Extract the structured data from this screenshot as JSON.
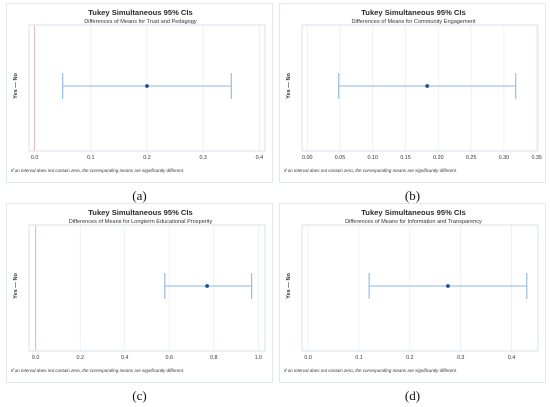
{
  "chart_data": [
    {
      "type": "interval",
      "caption": "(a)",
      "title": "Tukey Simultaneous 95% CIs",
      "subtitle": "Differences of Means for Trust and Pedagogy",
      "ylabel": "Yes — No",
      "xlim": [
        -0.01,
        0.41
      ],
      "ticks": [
        0.0,
        0.1,
        0.2,
        0.3,
        0.4
      ],
      "tick_labels": [
        "0.0",
        "0.1",
        "0.2",
        "0.3",
        "0.4"
      ],
      "zero_line": true,
      "grid": true,
      "series": [
        {
          "category": "Yes — No",
          "lower": 0.05,
          "estimate": 0.2,
          "upper": 0.35
        }
      ],
      "footnote": "If an interval does not contain zero, the corresponding means are significantly different."
    },
    {
      "type": "interval",
      "caption": "(b)",
      "title": "Tukey Simultaneous 95% CIs",
      "subtitle": "Differences of Means for Community Engagement",
      "ylabel": "Yes — No",
      "xlim": [
        -0.008,
        0.352
      ],
      "ticks": [
        0.0,
        0.05,
        0.1,
        0.15,
        0.2,
        0.25,
        0.3,
        0.35
      ],
      "tick_labels": [
        "0.00",
        "0.05",
        "0.10",
        "0.15",
        "0.20",
        "0.25",
        "0.30",
        "0.35"
      ],
      "zero_line": false,
      "grid": true,
      "series": [
        {
          "category": "Yes — No",
          "lower": 0.048,
          "estimate": 0.183,
          "upper": 0.318
        }
      ],
      "footnote": "If an interval does not contain zero, the corresponding means are significantly different."
    },
    {
      "type": "interval",
      "caption": "(c)",
      "title": "Tukey Simultaneous 95% CIs",
      "subtitle": "Differences of Means for Longterm Educational Prosperity",
      "ylabel": "Yes — No",
      "xlim": [
        -0.03,
        1.03
      ],
      "ticks": [
        0.0,
        0.2,
        0.4,
        0.6,
        0.8,
        1.0
      ],
      "tick_labels": [
        "0.0",
        "0.2",
        "0.4",
        "0.6",
        "0.8",
        "1.0"
      ],
      "zero_line": true,
      "grid": true,
      "series": [
        {
          "category": "Yes — No",
          "lower": 0.58,
          "estimate": 0.77,
          "upper": 0.97
        }
      ],
      "footnote": "If an interval does not contain zero, the corresponding means are significantly different."
    },
    {
      "type": "interval",
      "caption": "(d)",
      "title": "Tukey Simultaneous 95% CIs",
      "subtitle": "Differences of Means for Information and Transparency",
      "ylabel": "Yes — No",
      "xlim": [
        -0.012,
        0.452
      ],
      "ticks": [
        0.0,
        0.1,
        0.2,
        0.3,
        0.4
      ],
      "tick_labels": [
        "0.0",
        "0.1",
        "0.2",
        "0.3",
        "0.4"
      ],
      "zero_line": false,
      "grid": true,
      "series": [
        {
          "category": "Yes — No",
          "lower": 0.12,
          "estimate": 0.275,
          "upper": 0.43
        }
      ],
      "footnote": "If an interval does not contain zero, the corresponding means are significantly different."
    }
  ],
  "colors": {
    "interval": "#8fb8df",
    "estimate": "#1f4e8c",
    "grid": "#e8ecf2",
    "zero_line": "#dba8b2",
    "frame": "#c9d6e6",
    "title": "#2b2b2b",
    "text": "#333333"
  }
}
